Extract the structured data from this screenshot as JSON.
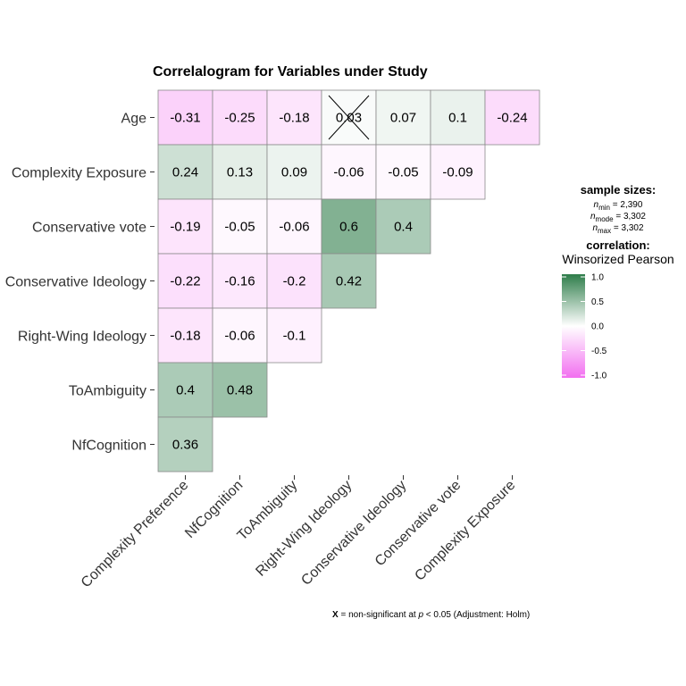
{
  "chart_data": {
    "type": "heatmap",
    "title": "Correlalogram for Variables under Study",
    "rows": [
      "Age",
      "Complexity Exposure",
      "Conservative vote",
      "Conservative Ideology",
      "Right-Wing Ideology",
      "ToAmbiguity",
      "NfCognition"
    ],
    "columns": [
      "Complexity Preference",
      "NfCognition",
      "ToAmbiguity",
      "Right-Wing Ideology",
      "Conservative Ideology",
      "Conservative vote",
      "Complexity Exposure"
    ],
    "values": [
      [
        -0.31,
        -0.25,
        -0.18,
        0.03,
        0.07,
        0.1,
        -0.24
      ],
      [
        0.24,
        0.13,
        0.09,
        -0.06,
        -0.05,
        -0.09
      ],
      [
        -0.19,
        -0.05,
        -0.06,
        0.6,
        0.4
      ],
      [
        -0.22,
        -0.16,
        -0.2,
        0.42
      ],
      [
        -0.18,
        -0.06,
        -0.1
      ],
      [
        0.4,
        0.48
      ],
      [
        0.36
      ]
    ],
    "value_labels": [
      [
        "-0.31",
        "-0.25",
        "-0.18",
        "0.03",
        "0.07",
        "0.1",
        "-0.24"
      ],
      [
        "0.24",
        "0.13",
        "0.09",
        "-0.06",
        "-0.05",
        "-0.09"
      ],
      [
        "-0.19",
        "-0.05",
        "-0.06",
        "0.6",
        "0.4"
      ],
      [
        "-0.22",
        "-0.16",
        "-0.2",
        "0.42"
      ],
      [
        "-0.18",
        "-0.06",
        "-0.1"
      ],
      [
        "0.4",
        "0.48"
      ],
      [
        "0.36"
      ]
    ],
    "nonsignificant": [
      [
        0,
        3
      ]
    ],
    "color_scale": {
      "low": "#f26ff0",
      "mid": "#ffffff",
      "high": "#2e7d4a",
      "min": -1.0,
      "max": 1.0
    },
    "legend": {
      "sample_title": "sample sizes:",
      "n_min_label": "min",
      "n_min_value": "= 2,390",
      "n_mode_label": "mode",
      "n_mode_value": "= 3,302",
      "n_max_label": "max",
      "n_max_value": "= 3,302",
      "n_symbol": "n",
      "corr_title": "correlation:",
      "corr_subtitle": "Winsorized Pearson",
      "ticks": [
        "1.0",
        "0.5",
        "0.0",
        "-0.5",
        "-1.0"
      ],
      "placement": "right"
    },
    "caption": {
      "bold": "X",
      "text1": " = non-significant at ",
      "italic": "p",
      "text2": " < 0.05 (Adjustment: Holm)"
    }
  }
}
